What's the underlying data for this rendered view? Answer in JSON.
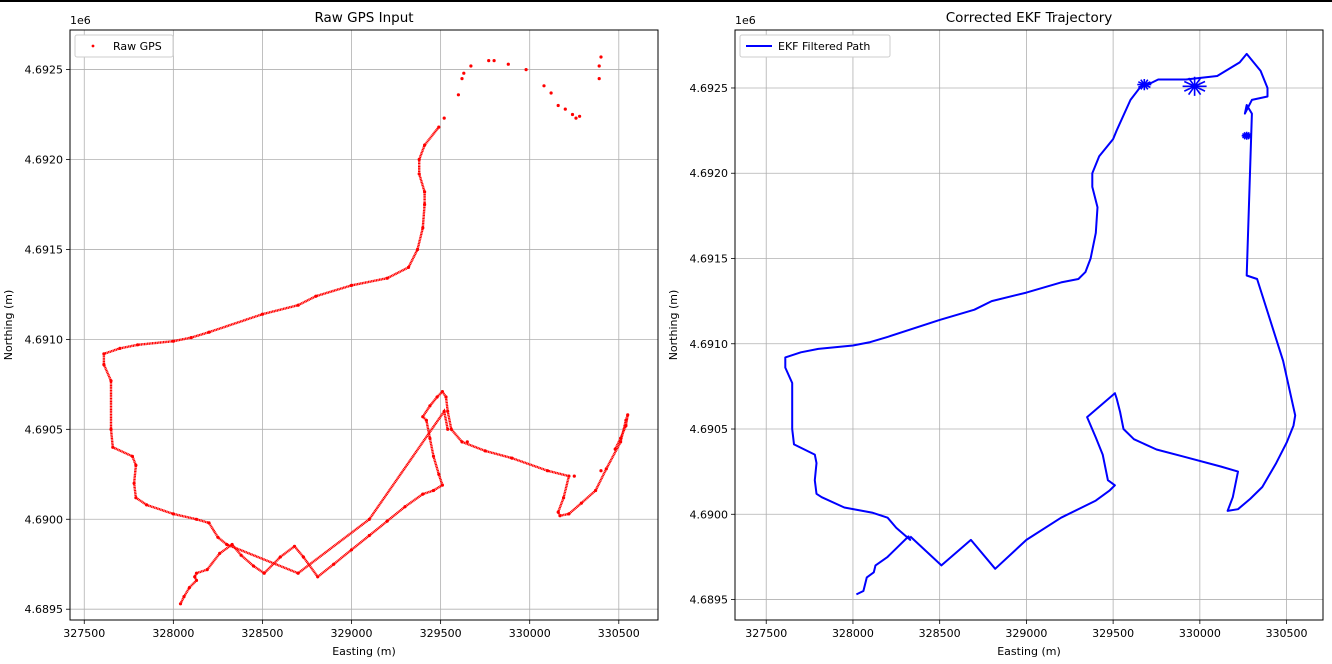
{
  "colors": {
    "left_series": "#ff0000",
    "right_series": "#0000ff",
    "grid": "#b0b0b0",
    "axes": "#000000"
  },
  "chart_data": [
    {
      "type": "scatter",
      "title": "Raw GPS Input",
      "xlabel": "Easting (m)",
      "ylabel": "Northing (m)",
      "offset_label": "1e6",
      "xlim": [
        327420,
        330720
      ],
      "ylim": [
        4.68944,
        4.69272
      ],
      "xticks": [
        327500,
        328000,
        328500,
        329000,
        329500,
        330000,
        330500
      ],
      "yticks": [
        4.6895,
        4.69,
        4.6905,
        4.691,
        4.6915,
        4.692,
        4.6925
      ],
      "grid": true,
      "legend_position": "upper-left",
      "series": [
        {
          "name": "Raw GPS",
          "color": "#ff0000",
          "points": [
            [
              328040,
              4.68953
            ],
            [
              328060,
              4.68957
            ],
            [
              328090,
              4.68962
            ],
            [
              328130,
              4.68966
            ],
            [
              328120,
              4.68968
            ],
            [
              328130,
              4.6897
            ],
            [
              328190,
              4.68972
            ],
            [
              328260,
              4.68981
            ],
            [
              328330,
              4.68986
            ],
            [
              328380,
              4.6898
            ],
            [
              328450,
              4.68974
            ],
            [
              328510,
              4.6897
            ],
            [
              328600,
              4.68979
            ],
            [
              328680,
              4.68985
            ],
            [
              328730,
              4.68979
            ],
            [
              328810,
              4.68968
            ],
            [
              328900,
              4.68975
            ],
            [
              329000,
              4.68983
            ],
            [
              329100,
              4.68991
            ],
            [
              329200,
              4.68999
            ],
            [
              329300,
              4.69007
            ],
            [
              329400,
              4.69014
            ],
            [
              329460,
              4.69016
            ],
            [
              329510,
              4.69019
            ],
            [
              329490,
              4.69025
            ],
            [
              329460,
              4.69035
            ],
            [
              329440,
              4.69045
            ],
            [
              329420,
              4.69055
            ],
            [
              329400,
              4.69057
            ],
            [
              329440,
              4.69063
            ],
            [
              329480,
              4.69068
            ],
            [
              329510,
              4.69071
            ],
            [
              329530,
              4.69068
            ],
            [
              329540,
              4.6906
            ],
            [
              329560,
              4.6905
            ],
            [
              329620,
              4.69043
            ],
            [
              329750,
              4.69038
            ],
            [
              329900,
              4.69034
            ],
            [
              330100,
              4.69027
            ],
            [
              330220,
              4.69024
            ],
            [
              330190,
              4.69012
            ],
            [
              330160,
              4.69004
            ],
            [
              330170,
              4.69002
            ],
            [
              330220,
              4.69003
            ],
            [
              330290,
              4.69009
            ],
            [
              330370,
              4.69016
            ],
            [
              330430,
              4.69028
            ],
            [
              330510,
              4.69043
            ],
            [
              330540,
              4.69055
            ],
            [
              330550,
              4.69058
            ],
            [
              330540,
              4.69052
            ],
            [
              330510,
              4.69045
            ],
            [
              330480,
              4.69039
            ],
            [
              330400,
              4.69027
            ],
            [
              330250,
              4.69024
            ],
            [
              329650,
              4.69043
            ],
            [
              329540,
              4.6905
            ],
            [
              329520,
              4.6906
            ],
            [
              329100,
              4.69
            ],
            [
              328700,
              4.6897
            ],
            [
              328300,
              4.68986
            ],
            [
              328250,
              4.6899
            ],
            [
              328200,
              4.68998
            ],
            [
              328130,
              4.69
            ],
            [
              328000,
              4.69003
            ],
            [
              327850,
              4.69008
            ],
            [
              327790,
              4.69012
            ],
            [
              327780,
              4.6902
            ],
            [
              327790,
              4.6903
            ],
            [
              327770,
              4.69035
            ],
            [
              327660,
              4.6904
            ],
            [
              327650,
              4.6905
            ],
            [
              327650,
              4.69077
            ],
            [
              327610,
              4.69086
            ],
            [
              327610,
              4.69092
            ],
            [
              327700,
              4.69095
            ],
            [
              327800,
              4.69097
            ],
            [
              328000,
              4.69099
            ],
            [
              328100,
              4.69101
            ],
            [
              328200,
              4.69104
            ],
            [
              328500,
              4.69114
            ],
            [
              328700,
              4.69119
            ],
            [
              328800,
              4.69124
            ],
            [
              329000,
              4.6913
            ],
            [
              329200,
              4.69134
            ],
            [
              329320,
              4.6914
            ],
            [
              329370,
              4.6915
            ],
            [
              329400,
              4.69162
            ],
            [
              329410,
              4.69175
            ],
            [
              329410,
              4.69182
            ],
            [
              329380,
              4.69192
            ],
            [
              329380,
              4.692
            ],
            [
              329410,
              4.69208
            ],
            [
              329490,
              4.69218
            ],
            [
              329520,
              4.69223
            ],
            [
              329620,
              4.69245
            ],
            [
              329670,
              4.69252
            ],
            [
              329630,
              4.69248
            ],
            [
              329600,
              4.69236
            ],
            [
              329770,
              4.69255
            ],
            [
              329800,
              4.69255
            ],
            [
              329880,
              4.69253
            ],
            [
              329980,
              4.6925
            ],
            [
              330080,
              4.69241
            ],
            [
              330120,
              4.69237
            ],
            [
              330160,
              4.6923
            ],
            [
              330200,
              4.69228
            ],
            [
              330240,
              4.69225
            ],
            [
              330260,
              4.69223
            ],
            [
              330280,
              4.69224
            ],
            [
              330390,
              4.69245
            ],
            [
              330390,
              4.69252
            ],
            [
              330400,
              4.69257
            ]
          ]
        }
      ]
    },
    {
      "type": "line",
      "title": "Corrected EKF Trajectory",
      "xlabel": "Easting (m)",
      "ylabel": "Northing (m)",
      "offset_label": "1e6",
      "xlim": [
        327320,
        330710
      ],
      "ylim": [
        4.68938,
        4.69284
      ],
      "xticks": [
        327500,
        328000,
        328500,
        329000,
        329500,
        330000,
        330500
      ],
      "yticks": [
        4.6895,
        4.69,
        4.6905,
        4.691,
        4.6915,
        4.692,
        4.6925
      ],
      "grid": true,
      "legend_position": "upper-left",
      "series": [
        {
          "name": "EKF Filtered Path",
          "color": "#0000ff",
          "points": [
            [
              328020,
              4.68953
            ],
            [
              328060,
              4.68955
            ],
            [
              328080,
              4.68963
            ],
            [
              328120,
              4.68966
            ],
            [
              328130,
              4.6897
            ],
            [
              328200,
              4.68975
            ],
            [
              328260,
              4.68981
            ],
            [
              328320,
              4.68987
            ],
            [
              328330,
              4.68985
            ],
            [
              328250,
              4.68992
            ],
            [
              328200,
              4.68998
            ],
            [
              328110,
              4.69001
            ],
            [
              327950,
              4.69004
            ],
            [
              327820,
              4.6901
            ],
            [
              327790,
              4.69012
            ],
            [
              327780,
              4.6902
            ],
            [
              327790,
              4.6903
            ],
            [
              327780,
              4.69035
            ],
            [
              327660,
              4.69041
            ],
            [
              327650,
              4.6905
            ],
            [
              327650,
              4.69077
            ],
            [
              327610,
              4.69086
            ],
            [
              327610,
              4.69092
            ],
            [
              327700,
              4.69095
            ],
            [
              327800,
              4.69097
            ],
            [
              328000,
              4.69099
            ],
            [
              328100,
              4.69101
            ],
            [
              328200,
              4.69104
            ],
            [
              328500,
              4.69114
            ],
            [
              328700,
              4.6912
            ],
            [
              328800,
              4.69125
            ],
            [
              329000,
              4.6913
            ],
            [
              329200,
              4.69136
            ],
            [
              329300,
              4.69138
            ],
            [
              329340,
              4.69142
            ],
            [
              329370,
              4.6915
            ],
            [
              329400,
              4.69165
            ],
            [
              329410,
              4.6918
            ],
            [
              329380,
              4.69192
            ],
            [
              329380,
              4.692
            ],
            [
              329420,
              4.6921
            ],
            [
              329500,
              4.6922
            ],
            [
              329520,
              4.69225
            ],
            [
              329600,
              4.69243
            ],
            [
              329660,
              4.69251
            ],
            [
              329700,
              4.69252
            ],
            [
              329760,
              4.69255
            ],
            [
              329920,
              4.69255
            ],
            [
              330100,
              4.69257
            ],
            [
              330230,
              4.69265
            ],
            [
              330270,
              4.6927
            ],
            [
              330350,
              4.6926
            ],
            [
              330390,
              4.6925
            ],
            [
              330390,
              4.69245
            ],
            [
              330300,
              4.69243
            ],
            [
              330260,
              4.69235
            ],
            [
              330270,
              4.6924
            ],
            [
              330300,
              4.69235
            ],
            [
              330270,
              4.6914
            ],
            [
              330330,
              4.69138
            ],
            [
              330480,
              4.6909
            ],
            [
              330550,
              4.69058
            ],
            [
              330540,
              4.69052
            ],
            [
              330500,
              4.69042
            ],
            [
              330440,
              4.6903
            ],
            [
              330360,
              4.69016
            ],
            [
              330290,
              4.69009
            ],
            [
              330220,
              4.69003
            ],
            [
              330160,
              4.69002
            ],
            [
              330190,
              4.6901
            ],
            [
              330220,
              4.69025
            ],
            [
              330120,
              4.69028
            ],
            [
              329900,
              4.69034
            ],
            [
              329750,
              4.69038
            ],
            [
              329620,
              4.69044
            ],
            [
              329560,
              4.6905
            ],
            [
              329540,
              4.6906
            ],
            [
              329520,
              4.69068
            ],
            [
              329510,
              4.69071
            ],
            [
              329350,
              4.69057
            ],
            [
              329400,
              4.69045
            ],
            [
              329440,
              4.69035
            ],
            [
              329470,
              4.6902
            ],
            [
              329510,
              4.69017
            ],
            [
              329480,
              4.69014
            ],
            [
              329400,
              4.69008
            ],
            [
              329200,
              4.68998
            ],
            [
              329000,
              4.68985
            ],
            [
              328820,
              4.68968
            ],
            [
              328680,
              4.68985
            ],
            [
              328510,
              4.6897
            ],
            [
              328330,
              4.68987
            ]
          ]
        }
      ]
    }
  ]
}
